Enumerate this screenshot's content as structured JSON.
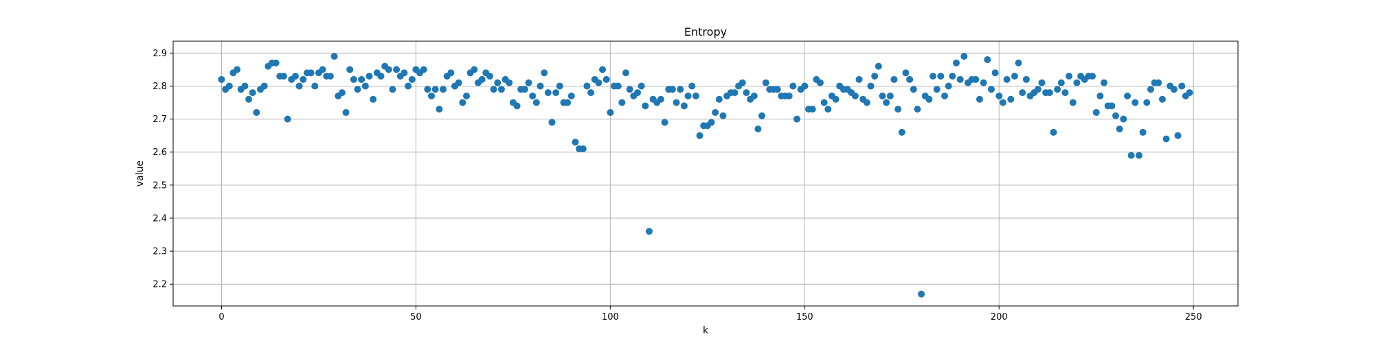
{
  "chart_data": {
    "type": "scatter",
    "title": "Entropy",
    "xlabel": "k",
    "ylabel": "value",
    "xlim": [
      -12.45,
      261.45
    ],
    "ylim": [
      2.134,
      2.936
    ],
    "xticks": [
      0,
      50,
      100,
      150,
      200,
      250
    ],
    "yticks": [
      2.2,
      2.3,
      2.4,
      2.5,
      2.6,
      2.7,
      2.8,
      2.9
    ],
    "ytick_labels": [
      "2.2",
      "2.3",
      "2.4",
      "2.5",
      "2.6",
      "2.7",
      "2.8",
      "2.9"
    ],
    "grid": true,
    "marker_color": "#1f77b4",
    "x": [
      0,
      1,
      2,
      3,
      4,
      5,
      6,
      7,
      8,
      9,
      10,
      11,
      12,
      13,
      14,
      15,
      16,
      17,
      18,
      19,
      20,
      21,
      22,
      23,
      24,
      25,
      26,
      27,
      28,
      29,
      30,
      31,
      32,
      33,
      34,
      35,
      36,
      37,
      38,
      39,
      40,
      41,
      42,
      43,
      44,
      45,
      46,
      47,
      48,
      49,
      50,
      51,
      52,
      53,
      54,
      55,
      56,
      57,
      58,
      59,
      60,
      61,
      62,
      63,
      64,
      65,
      66,
      67,
      68,
      69,
      70,
      71,
      72,
      73,
      74,
      75,
      76,
      77,
      78,
      79,
      80,
      81,
      82,
      83,
      84,
      85,
      86,
      87,
      88,
      89,
      90,
      91,
      92,
      93,
      94,
      95,
      96,
      97,
      98,
      99,
      100,
      101,
      102,
      103,
      104,
      105,
      106,
      107,
      108,
      109,
      110,
      111,
      112,
      113,
      114,
      115,
      116,
      117,
      118,
      119,
      120,
      121,
      122,
      123,
      124,
      125,
      126,
      127,
      128,
      129,
      130,
      131,
      132,
      133,
      134,
      135,
      136,
      137,
      138,
      139,
      140,
      141,
      142,
      143,
      144,
      145,
      146,
      147,
      148,
      149,
      150,
      151,
      152,
      153,
      154,
      155,
      156,
      157,
      158,
      159,
      160,
      161,
      162,
      163,
      164,
      165,
      166,
      167,
      168,
      169,
      170,
      171,
      172,
      173,
      174,
      175,
      176,
      177,
      178,
      179,
      180,
      181,
      182,
      183,
      184,
      185,
      186,
      187,
      188,
      189,
      190,
      191,
      192,
      193,
      194,
      195,
      196,
      197,
      198,
      199,
      200,
      201,
      202,
      203,
      204,
      205,
      206,
      207,
      208,
      209,
      210,
      211,
      212,
      213,
      214,
      215,
      216,
      217,
      218,
      219,
      220,
      221,
      222,
      223,
      224,
      225,
      226,
      227,
      228,
      229,
      230,
      231,
      232,
      233,
      234,
      235,
      236,
      237,
      238,
      239,
      240,
      241,
      242,
      243,
      244,
      245,
      246,
      247,
      248,
      249
    ],
    "y": [
      2.82,
      2.79,
      2.8,
      2.84,
      2.85,
      2.79,
      2.8,
      2.76,
      2.78,
      2.72,
      2.79,
      2.8,
      2.86,
      2.87,
      2.87,
      2.83,
      2.83,
      2.7,
      2.82,
      2.83,
      2.8,
      2.82,
      2.84,
      2.84,
      2.8,
      2.84,
      2.85,
      2.83,
      2.83,
      2.89,
      2.77,
      2.78,
      2.72,
      2.85,
      2.82,
      2.79,
      2.82,
      2.8,
      2.83,
      2.76,
      2.84,
      2.83,
      2.86,
      2.85,
      2.79,
      2.85,
      2.83,
      2.84,
      2.8,
      2.82,
      2.85,
      2.84,
      2.85,
      2.79,
      2.77,
      2.79,
      2.73,
      2.79,
      2.83,
      2.84,
      2.8,
      2.81,
      2.75,
      2.77,
      2.84,
      2.85,
      2.81,
      2.82,
      2.84,
      2.83,
      2.79,
      2.81,
      2.79,
      2.82,
      2.81,
      2.75,
      2.74,
      2.79,
      2.79,
      2.81,
      2.77,
      2.75,
      2.8,
      2.84,
      2.78,
      2.69,
      2.78,
      2.8,
      2.75,
      2.75,
      2.77,
      2.63,
      2.61,
      2.61,
      2.8,
      2.78,
      2.82,
      2.81,
      2.85,
      2.82,
      2.72,
      2.8,
      2.8,
      2.75,
      2.84,
      2.79,
      2.77,
      2.78,
      2.8,
      2.74,
      2.36,
      2.76,
      2.75,
      2.76,
      2.69,
      2.79,
      2.79,
      2.75,
      2.79,
      2.74,
      2.77,
      2.8,
      2.77,
      2.65,
      2.68,
      2.68,
      2.69,
      2.72,
      2.76,
      2.71,
      2.77,
      2.78,
      2.78,
      2.8,
      2.81,
      2.78,
      2.76,
      2.77,
      2.67,
      2.71,
      2.81,
      2.79,
      2.79,
      2.79,
      2.77,
      2.77,
      2.77,
      2.8,
      2.7,
      2.79,
      2.8,
      2.73,
      2.73,
      2.82,
      2.81,
      2.75,
      2.73,
      2.77,
      2.76,
      2.8,
      2.79,
      2.79,
      2.78,
      2.77,
      2.82,
      2.76,
      2.75,
      2.8,
      2.83,
      2.86,
      2.77,
      2.75,
      2.77,
      2.82,
      2.73,
      2.66,
      2.84,
      2.82,
      2.79,
      2.73,
      2.17,
      2.77,
      2.76,
      2.83,
      2.79,
      2.83,
      2.77,
      2.8,
      2.83,
      2.87,
      2.82,
      2.89,
      2.81,
      2.82,
      2.82,
      2.76,
      2.81,
      2.88,
      2.79,
      2.84,
      2.77,
      2.75,
      2.82,
      2.76,
      2.83,
      2.87,
      2.78,
      2.82,
      2.77,
      2.78,
      2.79,
      2.81,
      2.78,
      2.78,
      2.66,
      2.79,
      2.81,
      2.78,
      2.83,
      2.75,
      2.81,
      2.83,
      2.82,
      2.83,
      2.83,
      2.72,
      2.77,
      2.81,
      2.74,
      2.74,
      2.71,
      2.67,
      2.7,
      2.77,
      2.59,
      2.75,
      2.59,
      2.66,
      2.75,
      2.79,
      2.81,
      2.81,
      2.76,
      2.64,
      2.8,
      2.79,
      2.65,
      2.8,
      2.77,
      2.78
    ]
  }
}
